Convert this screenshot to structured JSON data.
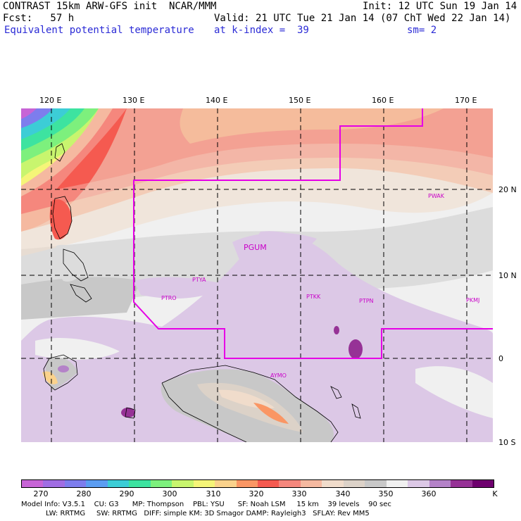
{
  "header": {
    "title": "CONTRAST 15km ARW-GFS init  NCAR/MMM",
    "fcst": "Fcst:   57 h",
    "field": "Equivalent potential temperature",
    "init": "Init: 12 UTC Sun 19 Jan 14",
    "valid": "Valid: 21 UTC Tue 21 Jan 14 (07 ChT Wed 22 Jan 14)",
    "level": "at k-index =  39",
    "smooth": "sm= 2"
  },
  "map": {
    "lon_labels": [
      "120 E",
      "130 E",
      "140 E",
      "150 E",
      "160 E",
      "170 E"
    ],
    "lat_labels": [
      "20 N",
      "10 N",
      "0",
      "10 S"
    ],
    "stations": [
      {
        "id": "PWAK"
      },
      {
        "id": "PGUM"
      },
      {
        "id": "PTYA"
      },
      {
        "id": "PTRO"
      },
      {
        "id": "PTKK"
      },
      {
        "id": "PTPN"
      },
      {
        "id": "PKMJ"
      },
      {
        "id": "AYMO"
      }
    ]
  },
  "colorbar": {
    "unit": "K",
    "labels": [
      "270",
      "280",
      "290",
      "300",
      "310",
      "320",
      "330",
      "340",
      "350",
      "360"
    ],
    "colors": [
      "#c764d6",
      "#a06de3",
      "#7d7ded",
      "#5b9df2",
      "#3ccdd6",
      "#3de3a0",
      "#7df07d",
      "#c8f56e",
      "#f5f578",
      "#fad28c",
      "#fa9664",
      "#f55a50",
      "#f5877d",
      "#f5b9a0",
      "#f0dccb",
      "#dcd2c8",
      "#c8c8c8",
      "#f0f0f0",
      "#dcc8e6",
      "#b482c8",
      "#963296",
      "#6e006e"
    ]
  },
  "footer": {
    "line1": "Model Info: V3.5.1    CU: G3      MP: Thompson    PBL: YSU      SF: Noah LSM     15 km    39 levels    90 sec",
    "line2": "           LW: RRTMG     SW: RRTMG   DIFF: simple KM: 3D Smagor DAMP: Rayleigh3   SFLAY: Rev MM5"
  }
}
